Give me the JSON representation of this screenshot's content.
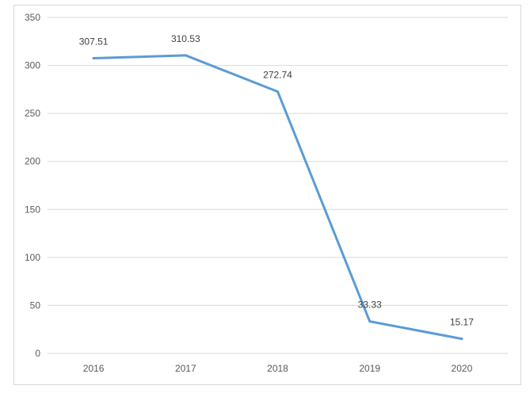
{
  "chart_data": {
    "type": "line",
    "title": "",
    "xlabel": "",
    "ylabel": "",
    "categories": [
      "2016",
      "2017",
      "2018",
      "2019",
      "2020"
    ],
    "series": [
      {
        "values": [
          307.51,
          310.53,
          272.74,
          33.33,
          15.17
        ],
        "data_labels": [
          "307.51",
          "310.53",
          "272.74",
          "33.33",
          "15.17"
        ],
        "color": "#5b9bd5"
      }
    ],
    "ylim": [
      0,
      350
    ],
    "yticks": [
      0,
      50,
      100,
      150,
      200,
      250,
      300,
      350
    ],
    "ytick_labels": [
      "0",
      "50",
      "100",
      "150",
      "200",
      "250",
      "300",
      "350"
    ],
    "grid": true,
    "legend": "none",
    "colors": {
      "gridline": "#d9d9d9",
      "line": "#5b9bd5"
    }
  }
}
